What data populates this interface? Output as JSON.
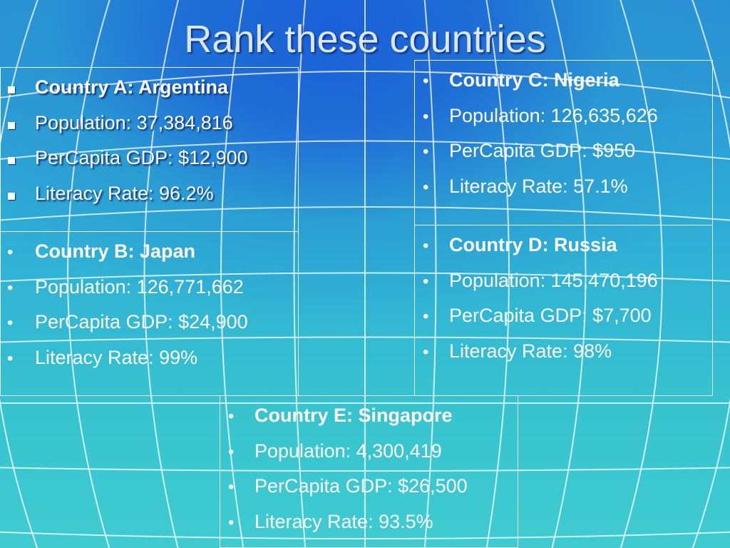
{
  "slide": {
    "title": "Rank these countries",
    "background_colors": {
      "top": "#1a5fd8",
      "bottom": "#3fcbd0",
      "grid": "#ffffff"
    }
  },
  "countries": [
    {
      "id": "a",
      "bullet_style": "square",
      "items": [
        "Country A:  Argentina",
        "Population:  37,384,816",
        "PerCapita GDP: $12,900",
        "Literacy Rate:  96.2%"
      ]
    },
    {
      "id": "b",
      "bullet_style": "dot",
      "items": [
        "Country B:  Japan",
        "Population:  126,771,662",
        "PerCapita GDP: $24,900",
        "Literacy Rate:  99%"
      ]
    },
    {
      "id": "c",
      "bullet_style": "dot",
      "items": [
        "Country C:  Nigeria",
        "Population:  126,635,626",
        "PerCapita GDP: $950",
        "Literacy Rate:  57.1%"
      ]
    },
    {
      "id": "d",
      "bullet_style": "dot",
      "items": [
        "Country D:  Russia",
        "Population:  145,470,196",
        "PerCapita GDP: $7,700",
        "Literacy Rate:  98%"
      ]
    },
    {
      "id": "e",
      "bullet_style": "dot",
      "items": [
        "Country E:  Singapore",
        "Population:  4,300,419",
        "PerCapita GDP: $26,500",
        "Literacy Rate:  93.5%"
      ]
    }
  ]
}
